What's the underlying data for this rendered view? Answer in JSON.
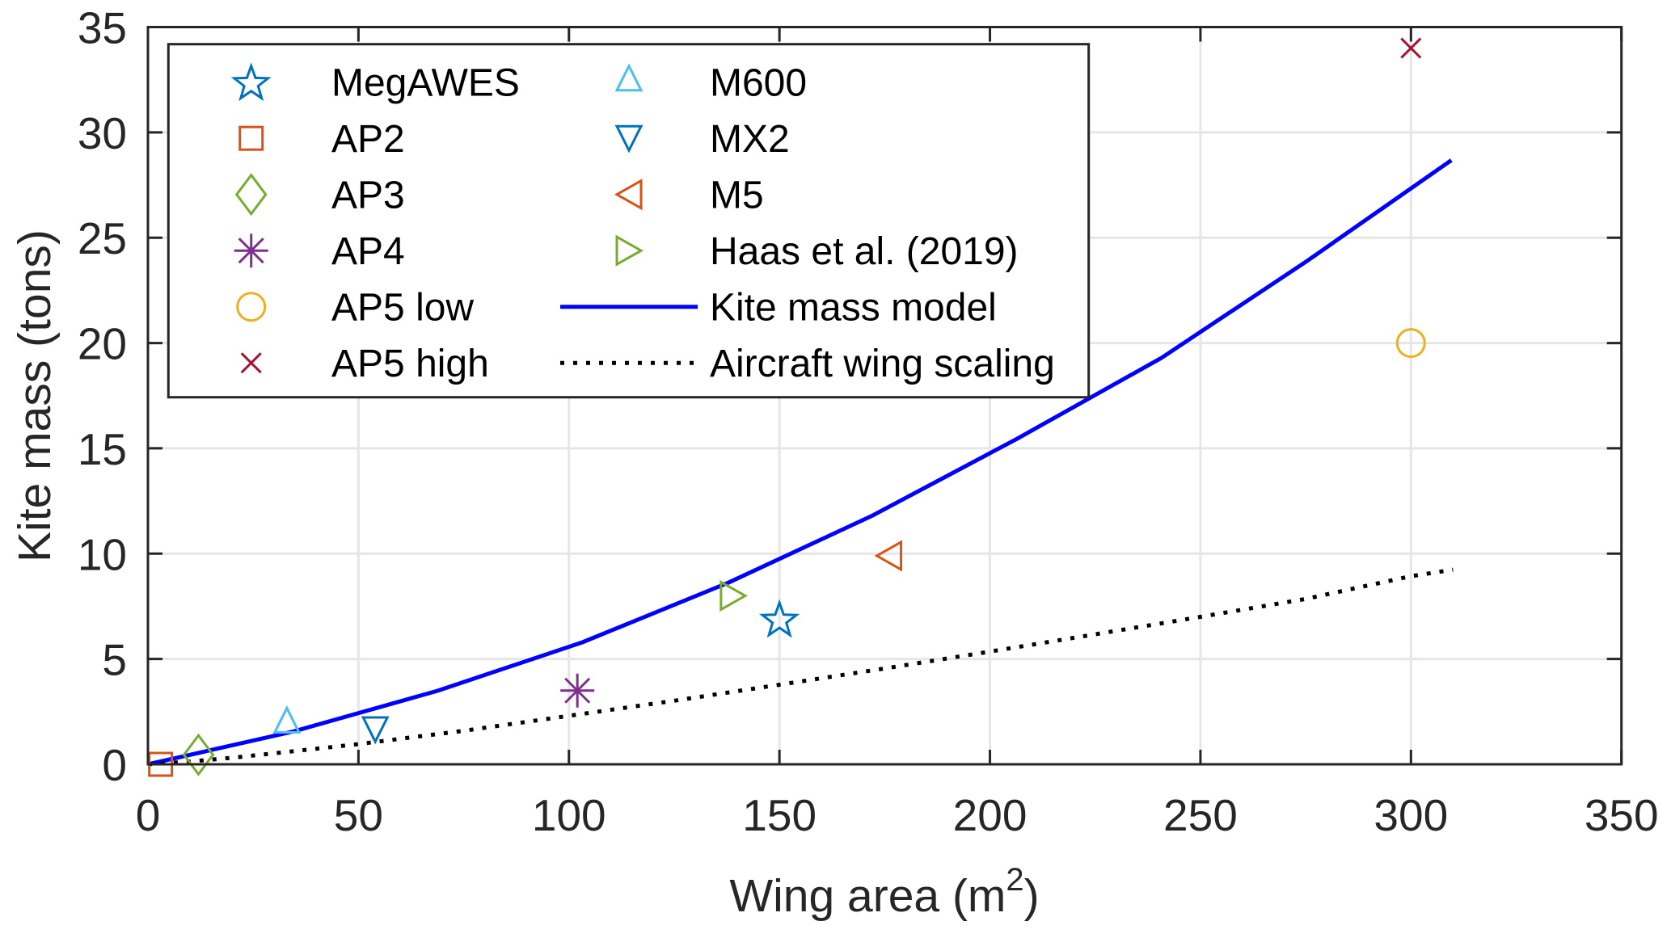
{
  "chart_data": {
    "type": "scatter",
    "title": "",
    "xlabel": "Wing area (m",
    "xlabel_sup": "2",
    "xlabel_close": ")",
    "ylabel": "Kite mass (tons)",
    "xlim": [
      0,
      350
    ],
    "ylim": [
      0,
      35
    ],
    "xticks": [
      0,
      50,
      100,
      150,
      200,
      250,
      300,
      350
    ],
    "yticks": [
      0,
      5,
      10,
      15,
      20,
      25,
      30,
      35
    ],
    "grid": true,
    "legend_position": "top-left",
    "legend_columns": 2,
    "points": [
      {
        "name": "MegAWES",
        "marker": "star",
        "color": "#0072BD",
        "x": 150,
        "y": 6.9
      },
      {
        "name": "AP2",
        "marker": "square",
        "color": "#D95319",
        "x": 3,
        "y": 0.0
      },
      {
        "name": "AP3",
        "marker": "diamond",
        "color": "#77AC30",
        "x": 12,
        "y": 0.45
      },
      {
        "name": "AP4",
        "marker": "asterisk",
        "color": "#7E2F8E",
        "x": 102,
        "y": 3.5
      },
      {
        "name": "AP5 low",
        "marker": "circle",
        "color": "#EDB120",
        "x": 300,
        "y": 20
      },
      {
        "name": "AP5 high",
        "marker": "x",
        "color": "#A2142F",
        "x": 300,
        "y": 34
      },
      {
        "name": "M600",
        "marker": "triangle-up",
        "color": "#4DBEEE",
        "x": 33,
        "y": 1.9
      },
      {
        "name": "MX2",
        "marker": "triangle-down",
        "color": "#0072BD",
        "x": 54,
        "y": 1.65
      },
      {
        "name": "M5",
        "marker": "triangle-left",
        "color": "#D95319",
        "x": 176,
        "y": 9.9
      },
      {
        "name": "Haas et al. (2019)",
        "marker": "triangle-right",
        "color": "#77AC30",
        "x": 139,
        "y": 8.0
      }
    ],
    "series": [
      {
        "name": "Kite mass model",
        "style": "solid",
        "color": "#0000FF",
        "x": [
          0,
          34.4,
          68.8,
          103.2,
          137.6,
          172.0,
          206.4,
          240.8,
          275.2,
          309.6
        ],
        "y": [
          0,
          1.55,
          3.49,
          5.79,
          8.6,
          11.8,
          15.45,
          19.3,
          23.88,
          28.68
        ]
      },
      {
        "name": "Aircraft wing scaling",
        "style": "dotted",
        "color": "#000000",
        "x": [
          0,
          10,
          20,
          30,
          50,
          75,
          100,
          125,
          150,
          175,
          200,
          225,
          250,
          275,
          300,
          310
        ],
        "y": [
          0,
          0.13,
          0.31,
          0.52,
          0.96,
          1.59,
          2.3,
          3.02,
          3.78,
          4.55,
          5.35,
          6.17,
          7.0,
          7.85,
          8.93,
          9.24
        ]
      }
    ],
    "legend": [
      {
        "label": "MegAWES",
        "kind": "marker",
        "ref": 0
      },
      {
        "label": "AP2",
        "kind": "marker",
        "ref": 1
      },
      {
        "label": "AP3",
        "kind": "marker",
        "ref": 2
      },
      {
        "label": "AP4",
        "kind": "marker",
        "ref": 3
      },
      {
        "label": "AP5 low",
        "kind": "marker",
        "ref": 4
      },
      {
        "label": "AP5 high",
        "kind": "marker",
        "ref": 5
      },
      {
        "label": "M600",
        "kind": "marker",
        "ref": 6
      },
      {
        "label": "MX2",
        "kind": "marker",
        "ref": 7
      },
      {
        "label": "M5",
        "kind": "marker",
        "ref": 8
      },
      {
        "label": "Haas et al. (2019)",
        "kind": "marker",
        "ref": 9
      },
      {
        "label": "Kite mass model",
        "kind": "line",
        "ref": 0
      },
      {
        "label": "Aircraft wing scaling",
        "kind": "line",
        "ref": 1
      }
    ]
  }
}
